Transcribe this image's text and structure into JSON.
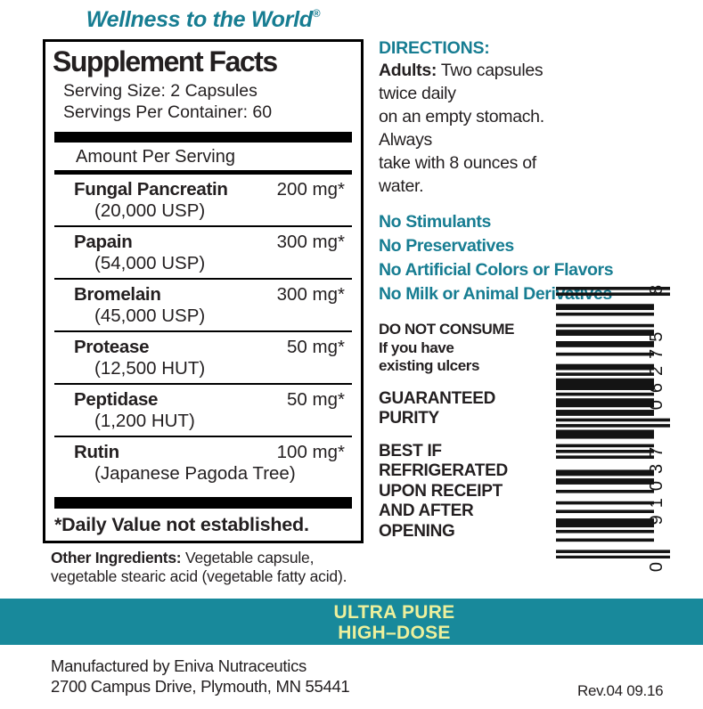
{
  "brand": {
    "tagline": "Wellness to the World",
    "trademark": "®"
  },
  "supplement_facts": {
    "title": "Supplement Facts",
    "serving_size": "Serving Size: 2 Capsules",
    "servings_per_container": "Servings Per Container: 60",
    "amount_header": "Amount Per Serving",
    "rows": [
      {
        "name": "Fungal Pancreatin",
        "detail": "(20,000 USP)",
        "amount": "200 mg*"
      },
      {
        "name": "Papain",
        "detail": "(54,000 USP)",
        "amount": "300 mg*"
      },
      {
        "name": "Bromelain",
        "detail": "(45,000 USP)",
        "amount": "300 mg*"
      },
      {
        "name": "Protease",
        "detail": "(12,500 HUT)",
        "amount": "50 mg*"
      },
      {
        "name": "Peptidase",
        "detail": "(1,200 HUT)",
        "amount": "50 mg*"
      },
      {
        "name": "Rutin",
        "detail": "(Japanese Pagoda Tree)",
        "amount": "100 mg*"
      }
    ],
    "footnote": "*Daily Value not established."
  },
  "other_ingredients": {
    "label": "Other Ingredients:",
    "text": "Vegetable capsule, vegetable stearic acid (vegetable fatty acid)."
  },
  "directions": {
    "heading": "DIRECTIONS:",
    "adults_label": "Adults:",
    "body": "Two capsules twice daily\non an empty stomach. Always\ntake with 8 ounces of water."
  },
  "claims": [
    "No Stimulants",
    "No Preservatives",
    "No Artificial Colors or Flavors",
    "No Milk or Animal Derivatives"
  ],
  "warnings": {
    "do_not_consume": "DO NOT CONSUME\nIf you have\nexisting ulcers",
    "guaranteed": "GUARANTEED\nPURITY",
    "best_if": "BEST IF\nREFRIGERATED\nUPON RECEIPT\nAND AFTER\nOPENING"
  },
  "barcode": {
    "digits": "0 91037 06275 8",
    "modules": "10100011010001011001100100011010111101011101101010111001010100001101100100010010011101001000101"
  },
  "band": {
    "line1": "ULTRA PURE",
    "line2": "HIGH–DOSE"
  },
  "footer": {
    "manufacturer_line1": "Manufactured by Eniva Nutraceutics",
    "manufacturer_line2": "2700 Campus Drive, Plymouth, MN 55441",
    "revision": "Rev.04 09.16"
  },
  "colors": {
    "teal_text": "#177d92",
    "band_teal": "#18899b",
    "band_yellow": "#edf09c",
    "ink_black": "#231f20"
  }
}
